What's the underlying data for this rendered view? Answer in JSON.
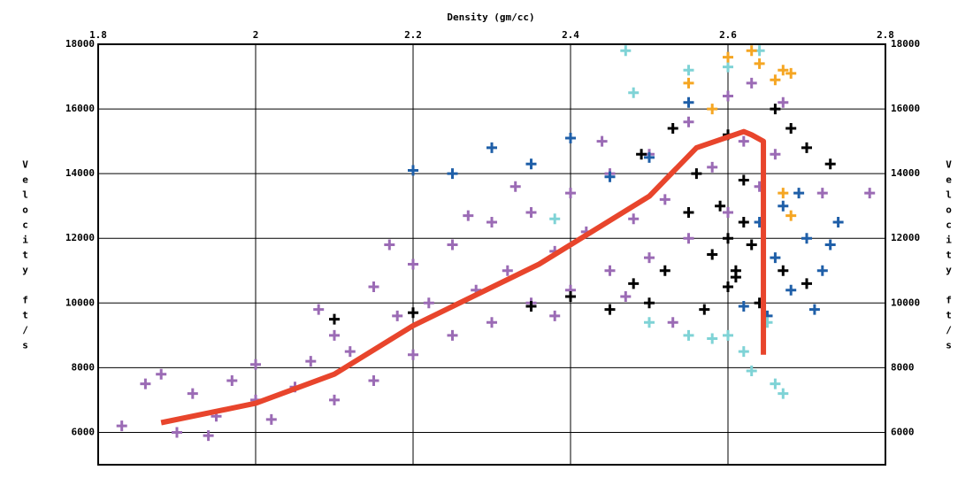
{
  "chart_data": {
    "type": "scatter",
    "x_label": "Density (gm/cc)",
    "y_label": "Velocity ft/s",
    "xlim": [
      1.8,
      2.8
    ],
    "ylim": [
      5000,
      18000
    ],
    "xticks": [
      1.8,
      2,
      2.2,
      2.4,
      2.6,
      2.8
    ],
    "yticks": [
      6000,
      8000,
      10000,
      12000,
      14000,
      16000,
      18000
    ],
    "grid": true,
    "series": [
      {
        "color": "#9b6bb5",
        "x": [
          1.83,
          1.86,
          1.88,
          1.9,
          1.92,
          1.95,
          1.97,
          2.0,
          2.0,
          2.02,
          2.05,
          2.07,
          2.1,
          2.1,
          2.12,
          2.15,
          2.15,
          2.18,
          2.2,
          2.2,
          2.22,
          2.25,
          2.25,
          2.28,
          2.3,
          2.3,
          2.32,
          2.35,
          2.35,
          2.38,
          2.4,
          2.4,
          2.42,
          2.45,
          2.45,
          2.48,
          2.5,
          2.5,
          2.52,
          2.55,
          2.55,
          2.58,
          2.6,
          2.6,
          2.62,
          2.63,
          2.64,
          2.66,
          2.67,
          2.72,
          2.78,
          2.27,
          2.33,
          2.44,
          2.17,
          2.08,
          2.38,
          2.47,
          2.53,
          1.94
        ],
        "values": [
          6200,
          7500,
          7800,
          6000,
          7200,
          6500,
          7600,
          7000,
          8100,
          6400,
          7400,
          8200,
          7000,
          9000,
          8500,
          10500,
          7600,
          9600,
          8400,
          11200,
          10000,
          9000,
          11800,
          10400,
          12500,
          9400,
          11000,
          12800,
          10000,
          11600,
          13400,
          10400,
          12200,
          14000,
          11000,
          12600,
          14600,
          11400,
          13200,
          15600,
          12000,
          14200,
          16400,
          12800,
          15000,
          16800,
          13600,
          14600,
          16200,
          13400,
          13400,
          12700,
          13600,
          15000,
          11800,
          9800,
          9600,
          10200,
          9400,
          5900
        ]
      },
      {
        "color": "#000000",
        "x": [
          2.58,
          2.6,
          2.61,
          2.62,
          2.6,
          2.59,
          2.63,
          2.55,
          2.52,
          2.5,
          2.48,
          2.45,
          2.4,
          2.35,
          2.2,
          2.1,
          2.56,
          2.6,
          2.66,
          2.68,
          2.7,
          2.73,
          2.67,
          2.64,
          2.57,
          2.53,
          2.49,
          2.62,
          2.61,
          2.7
        ],
        "values": [
          11500,
          12000,
          11000,
          12500,
          10500,
          13000,
          11800,
          12800,
          11000,
          10000,
          10600,
          9800,
          10200,
          9900,
          9700,
          9500,
          14000,
          15200,
          16000,
          15400,
          14800,
          14300,
          11000,
          10000,
          9800,
          15400,
          14600,
          13800,
          10800,
          10600
        ]
      },
      {
        "color": "#1f5fa8",
        "x": [
          2.64,
          2.67,
          2.7,
          2.72,
          2.68,
          2.74,
          2.65,
          2.62,
          2.2,
          2.25,
          2.3,
          2.35,
          2.4,
          2.5,
          2.55,
          2.45,
          2.69,
          2.66,
          2.73,
          2.71
        ],
        "values": [
          12500,
          13000,
          12000,
          11000,
          10400,
          12500,
          9600,
          9900,
          14100,
          14000,
          14800,
          14300,
          15100,
          14500,
          16200,
          13900,
          13400,
          11400,
          11800,
          9800
        ]
      },
      {
        "color": "#7fd3d6",
        "x": [
          2.6,
          2.62,
          2.63,
          2.66,
          2.67,
          2.55,
          2.5,
          2.6,
          2.64,
          2.55,
          2.48,
          2.47,
          2.38,
          2.65,
          2.58
        ],
        "values": [
          9000,
          8500,
          7900,
          7500,
          7200,
          9000,
          9400,
          17300,
          17800,
          17200,
          16500,
          17800,
          12600,
          9400,
          8900
        ]
      },
      {
        "color": "#f5a623",
        "x": [
          2.63,
          2.64,
          2.67,
          2.68,
          2.66,
          2.6,
          2.55,
          2.58,
          2.67,
          2.68
        ],
        "values": [
          17800,
          17400,
          17200,
          17100,
          16900,
          17600,
          16800,
          16000,
          13400,
          12700
        ]
      }
    ],
    "trend": {
      "color": "#e8452c",
      "x": [
        1.88,
        2.0,
        2.1,
        2.2,
        2.36,
        2.5,
        2.56,
        2.62,
        2.63,
        2.645,
        2.645
      ],
      "values": [
        6300,
        6900,
        7800,
        9300,
        11200,
        13300,
        14800,
        15300,
        15200,
        15000,
        8400
      ]
    }
  }
}
